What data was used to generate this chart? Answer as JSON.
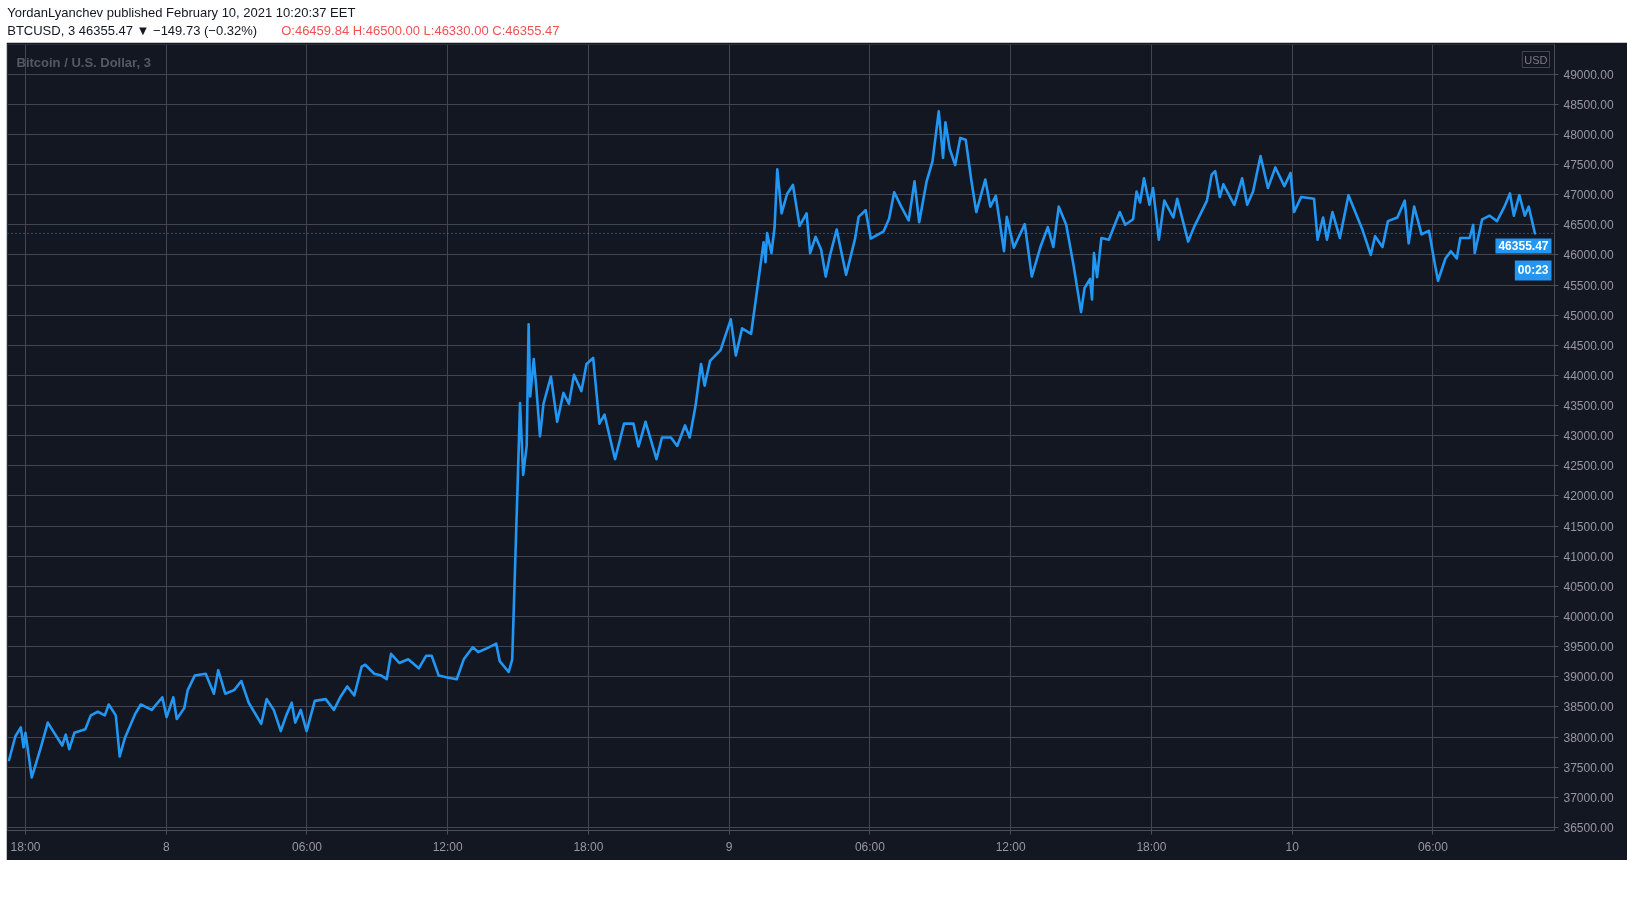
{
  "chart_data": {
    "type": "line",
    "title": "Bitcoin / U.S. Dollar, 3",
    "annotations": [
      "YordanLyanchev published February 10, 2021 10:20:37 EET",
      "BTCUSD, 3  46355.47 ▼ −149.73 (−0.32%)",
      "O:46459.84 H:46500.00 L:46330.00 C:46355.47",
      "USD",
      "00:23"
    ],
    "color": "#2196f3",
    "grid": true,
    "xlim": [
      "2021-02-07T17:14",
      "2021-02-10T11:11"
    ],
    "xticks": [
      {
        "value": "2021-02-07T18:00",
        "label": "18:00"
      },
      {
        "value": "2021-02-08T00:00",
        "label": "8"
      },
      {
        "value": "2021-02-08T06:00",
        "label": "06:00"
      },
      {
        "value": "2021-02-08T12:00",
        "label": "12:00"
      },
      {
        "value": "2021-02-08T18:00",
        "label": "18:00"
      },
      {
        "value": "2021-02-09T00:00",
        "label": "9"
      },
      {
        "value": "2021-02-09T06:00",
        "label": "06:00"
      },
      {
        "value": "2021-02-09T12:00",
        "label": "12:00"
      },
      {
        "value": "2021-02-09T18:00",
        "label": "18:00"
      },
      {
        "value": "2021-02-10T00:00",
        "label": "10"
      },
      {
        "value": "2021-02-10T06:00",
        "label": "06:00"
      }
    ],
    "ylim": [
      36450,
      49490
    ],
    "yticks": [
      {
        "value": 36500,
        "label": "36500.00"
      },
      {
        "value": 37000,
        "label": "37000.00"
      },
      {
        "value": 37500,
        "label": "37500.00"
      },
      {
        "value": 38000,
        "label": "38000.00"
      },
      {
        "value": 38500,
        "label": "38500.00"
      },
      {
        "value": 39000,
        "label": "39000.00"
      },
      {
        "value": 39500,
        "label": "39500.00"
      },
      {
        "value": 40000,
        "label": "40000.00"
      },
      {
        "value": 40500,
        "label": "40500.00"
      },
      {
        "value": 41000,
        "label": "41000.00"
      },
      {
        "value": 41500,
        "label": "41500.00"
      },
      {
        "value": 42000,
        "label": "42000.00"
      },
      {
        "value": 42500,
        "label": "42500.00"
      },
      {
        "value": 43000,
        "label": "43000.00"
      },
      {
        "value": 43500,
        "label": "43500.00"
      },
      {
        "value": 44000,
        "label": "44000.00"
      },
      {
        "value": 44500,
        "label": "44500.00"
      },
      {
        "value": 45000,
        "label": "45000.00"
      },
      {
        "value": 45500,
        "label": "45500.00"
      },
      {
        "value": 46000,
        "label": "46000.00"
      },
      {
        "value": 46500,
        "label": "46500.00"
      },
      {
        "value": 47000,
        "label": "47000.00"
      },
      {
        "value": 47500,
        "label": "47500.00"
      },
      {
        "value": 48000,
        "label": "48000.00"
      },
      {
        "value": 48500,
        "label": "48500.00"
      },
      {
        "value": 49000,
        "label": "49000.00"
      }
    ],
    "ref_lines": [
      {
        "axis": "y",
        "value": 46355.47,
        "label": "46355.47",
        "color": "#2196f3",
        "line_style": "dotted"
      }
    ],
    "x": [
      "2021-02-07T17:18",
      "2021-02-07T17:34",
      "2021-02-07T17:48",
      "2021-02-07T17:55",
      "2021-02-07T18:00",
      "2021-02-07T18:16",
      "2021-02-07T18:38",
      "2021-02-07T18:57",
      "2021-02-07T19:34",
      "2021-02-07T19:43",
      "2021-02-07T19:52",
      "2021-02-07T20:05",
      "2021-02-07T20:33",
      "2021-02-07T20:47",
      "2021-02-07T21:05",
      "2021-02-07T21:23",
      "2021-02-07T21:33",
      "2021-02-07T21:51",
      "2021-02-07T22:01",
      "2021-02-07T22:14",
      "2021-02-07T22:41",
      "2021-02-07T22:55",
      "2021-02-07T23:23",
      "2021-02-07T23:50",
      "2021-02-08T00:01",
      "2021-02-08T00:18",
      "2021-02-08T00:27",
      "2021-02-08T00:46",
      "2021-02-08T00:55",
      "2021-02-08T01:13",
      "2021-02-08T01:41",
      "2021-02-08T02:02",
      "2021-02-08T02:13",
      "2021-02-08T02:31",
      "2021-02-08T02:54",
      "2021-02-08T03:12",
      "2021-02-08T03:31",
      "2021-02-08T04:03",
      "2021-02-08T04:17",
      "2021-02-08T04:35",
      "2021-02-08T04:53",
      "2021-02-08T05:07",
      "2021-02-08T05:21",
      "2021-02-08T05:30",
      "2021-02-08T05:44",
      "2021-02-08T05:59",
      "2021-02-08T06:20",
      "2021-02-08T06:48",
      "2021-02-08T07:09",
      "2021-02-08T07:25",
      "2021-02-08T07:43",
      "2021-02-08T08:01",
      "2021-02-08T08:20",
      "2021-02-08T08:29",
      "2021-02-08T08:52",
      "2021-02-08T09:10",
      "2021-02-08T09:24",
      "2021-02-08T09:35",
      "2021-02-08T09:56",
      "2021-02-08T10:19",
      "2021-02-08T10:46",
      "2021-02-08T11:05",
      "2021-02-08T11:19",
      "2021-02-08T11:37",
      "2021-02-08T11:59",
      "2021-02-08T12:23",
      "2021-02-08T12:41",
      "2021-02-08T13:04",
      "2021-02-08T13:18",
      "2021-02-08T13:36",
      "2021-02-08T14:04",
      "2021-02-08T14:13",
      "2021-02-08T14:36",
      "2021-02-08T14:45",
      "2021-02-08T14:59",
      "2021-02-08T15:05",
      "2021-02-08T15:13",
      "2021-02-08T15:22",
      "2021-02-08T15:27",
      "2021-02-08T15:31",
      "2021-02-08T15:40",
      "2021-02-08T15:47",
      "2021-02-08T15:56",
      "2021-02-08T16:05",
      "2021-02-08T16:24",
      "2021-02-08T16:40",
      "2021-02-08T16:56",
      "2021-02-08T17:10",
      "2021-02-08T17:23",
      "2021-02-08T17:42",
      "2021-02-08T17:55",
      "2021-02-08T18:12",
      "2021-02-08T18:28",
      "2021-02-08T18:41",
      "2021-02-08T19:08",
      "2021-02-08T19:31",
      "2021-02-08T19:55",
      "2021-02-08T20:08",
      "2021-02-08T20:26",
      "2021-02-08T20:54",
      "2021-02-08T21:08",
      "2021-02-08T21:31",
      "2021-02-08T21:47",
      "2021-02-08T22:07",
      "2021-02-08T22:19",
      "2021-02-08T22:34",
      "2021-02-08T22:48",
      "2021-02-08T22:57",
      "2021-02-08T23:11",
      "2021-02-08T23:38",
      "2021-02-09T00:04",
      "2021-02-09T00:17",
      "2021-02-09T00:33",
      "2021-02-09T00:56",
      "2021-02-09T01:10",
      "2021-02-09T01:28",
      "2021-02-09T01:33",
      "2021-02-09T01:37",
      "2021-02-09T01:48",
      "2021-02-09T01:56",
      "2021-02-09T02:03",
      "2021-02-09T02:14",
      "2021-02-09T02:28",
      "2021-02-09T02:43",
      "2021-02-09T03:00",
      "2021-02-09T03:18",
      "2021-02-09T03:27",
      "2021-02-09T03:41",
      "2021-02-09T03:55",
      "2021-02-09T04:07",
      "2021-02-09T04:17",
      "2021-02-09T04:35",
      "2021-02-09T04:59",
      "2021-02-09T05:22",
      "2021-02-09T05:31",
      "2021-02-09T05:49",
      "2021-02-09T06:02",
      "2021-02-09T06:35",
      "2021-02-09T06:49",
      "2021-02-09T07:02",
      "2021-02-09T07:20",
      "2021-02-09T07:39",
      "2021-02-09T07:54",
      "2021-02-09T08:06",
      "2021-02-09T08:25",
      "2021-02-09T08:40",
      "2021-02-09T08:56",
      "2021-02-09T09:07",
      "2021-02-09T09:13",
      "2021-02-09T09:24",
      "2021-02-09T09:38",
      "2021-02-09T09:51",
      "2021-02-09T10:05",
      "2021-02-09T10:19",
      "2021-02-09T10:32",
      "2021-02-09T10:55",
      "2021-02-09T11:08",
      "2021-02-09T11:22",
      "2021-02-09T11:43",
      "2021-02-09T11:50",
      "2021-02-09T12:08",
      "2021-02-09T12:36",
      "2021-02-09T12:54",
      "2021-02-09T13:16",
      "2021-02-09T13:35",
      "2021-02-09T13:49",
      "2021-02-09T14:03",
      "2021-02-09T14:22",
      "2021-02-09T14:41",
      "2021-02-09T15:00",
      "2021-02-09T15:09",
      "2021-02-09T15:23",
      "2021-02-09T15:28",
      "2021-02-09T15:33",
      "2021-02-09T15:41",
      "2021-02-09T15:52",
      "2021-02-09T16:11",
      "2021-02-09T16:39",
      "2021-02-09T16:53",
      "2021-02-09T17:13",
      "2021-02-09T17:22",
      "2021-02-09T17:31",
      "2021-02-09T17:41",
      "2021-02-09T17:55",
      "2021-02-09T18:04",
      "2021-02-09T18:19",
      "2021-02-09T18:33",
      "2021-02-09T18:56",
      "2021-02-09T19:06",
      "2021-02-09T19:34",
      "2021-02-09T19:49",
      "2021-02-09T20:22",
      "2021-02-09T20:34",
      "2021-02-09T20:43",
      "2021-02-09T20:55",
      "2021-02-09T21:04",
      "2021-02-09T21:32",
      "2021-02-09T21:52",
      "2021-02-09T22:05",
      "2021-02-09T22:20",
      "2021-02-09T22:39",
      "2021-02-09T22:58",
      "2021-02-09T23:17",
      "2021-02-09T23:40",
      "2021-02-09T23:56",
      "2021-02-10T00:05",
      "2021-02-10T00:23",
      "2021-02-10T00:56",
      "2021-02-10T01:05",
      "2021-02-10T01:19",
      "2021-02-10T01:29",
      "2021-02-10T01:43",
      "2021-02-10T02:02",
      "2021-02-10T02:24",
      "2021-02-10T02:59",
      "2021-02-10T03:21",
      "2021-02-10T03:32",
      "2021-02-10T03:51",
      "2021-02-10T04:05",
      "2021-02-10T04:29",
      "2021-02-10T04:48",
      "2021-02-10T04:58",
      "2021-02-10T05:12",
      "2021-02-10T05:31",
      "2021-02-10T05:50",
      "2021-02-10T06:04",
      "2021-02-10T06:13",
      "2021-02-10T06:32",
      "2021-02-10T06:46",
      "2021-02-10T07:01",
      "2021-02-10T07:10",
      "2021-02-10T07:34",
      "2021-02-10T07:43",
      "2021-02-10T07:47",
      "2021-02-10T08:06",
      "2021-02-10T08:25",
      "2021-02-10T08:44",
      "2021-02-10T09:03",
      "2021-02-10T09:17",
      "2021-02-10T09:27",
      "2021-02-10T09:41",
      "2021-02-10T09:55",
      "2021-02-10T10:05",
      "2021-02-10T10:21"
    ],
    "values": [
      37620,
      38010,
      38160,
      37830,
      38070,
      37330,
      37800,
      38240,
      37860,
      38040,
      37800,
      38070,
      38130,
      38360,
      38420,
      38360,
      38540,
      38360,
      37680,
      37980,
      38390,
      38540,
      38450,
      38660,
      38330,
      38660,
      38300,
      38480,
      38780,
      39020,
      39050,
      38720,
      39110,
      38720,
      38780,
      38930,
      38570,
      38220,
      38630,
      38450,
      38100,
      38360,
      38570,
      38240,
      38450,
      38100,
      38600,
      38630,
      38450,
      38660,
      38840,
      38690,
      39170,
      39200,
      39050,
      39020,
      38960,
      39380,
      39230,
      39290,
      39140,
      39350,
      39350,
      39020,
      38990,
      38960,
      39290,
      39490,
      39410,
      39460,
      39550,
      39260,
      39080,
      39290,
      42230,
      43540,
      42350,
      42830,
      44850,
      43650,
      44270,
      43770,
      42990,
      43530,
      43980,
      43230,
      43710,
      43530,
      44010,
      43740,
      44190,
      44290,
      43200,
      43350,
      42610,
      43200,
      43200,
      42820,
      43230,
      42610,
      42970,
      42970,
      42830,
      43170,
      42970,
      43500,
      44190,
      43830,
      44240,
      44420,
      44930,
      44330,
      44780,
      44690,
      45350,
      46210,
      45880,
      46360,
      46030,
      46450,
      47420,
      46690,
      47010,
      47160,
      46480,
      46690,
      46030,
      46300,
      46090,
      45640,
      45970,
      46420,
      45670,
      46270,
      46630,
      46740,
      46270,
      46390,
      46600,
      47040,
      46800,
      46570,
      47220,
      46540,
      47220,
      47550,
      48380,
      47610,
      48200,
      47760,
      47490,
      47940,
      47910,
      47250,
      46710,
      47250,
      46800,
      46980,
      46060,
      46630,
      46120,
      46510,
      45640,
      46130,
      46460,
      46130,
      46800,
      46500,
      45820,
      45050,
      45450,
      45600,
      45260,
      46030,
      45630,
      46280,
      46250,
      46710,
      46500,
      46590,
      47050,
      46870,
      47270,
      46830,
      47110,
      46250,
      46900,
      46620,
      46930,
      46220,
      46460,
      46900,
      47330,
      47390,
      46960,
      47170,
      46830,
      47270,
      46830,
      47050,
      47640,
      47110,
      47450,
      47140,
      47360,
      46710,
      46960,
      46930,
      46250,
      46620,
      46250,
      46710,
      46280,
      46990,
      46430,
      46000,
      46310,
      46130,
      46560,
      46620,
      46900,
      46190,
      46800,
      46340,
      46400,
      45880,
      45570,
      45940,
      46060,
      45940,
      46280,
      46280,
      46500,
      46030,
      46590,
      46650,
      46560,
      46800,
      47020,
      46650,
      46990,
      46650,
      46800,
      46355.47
    ]
  }
}
